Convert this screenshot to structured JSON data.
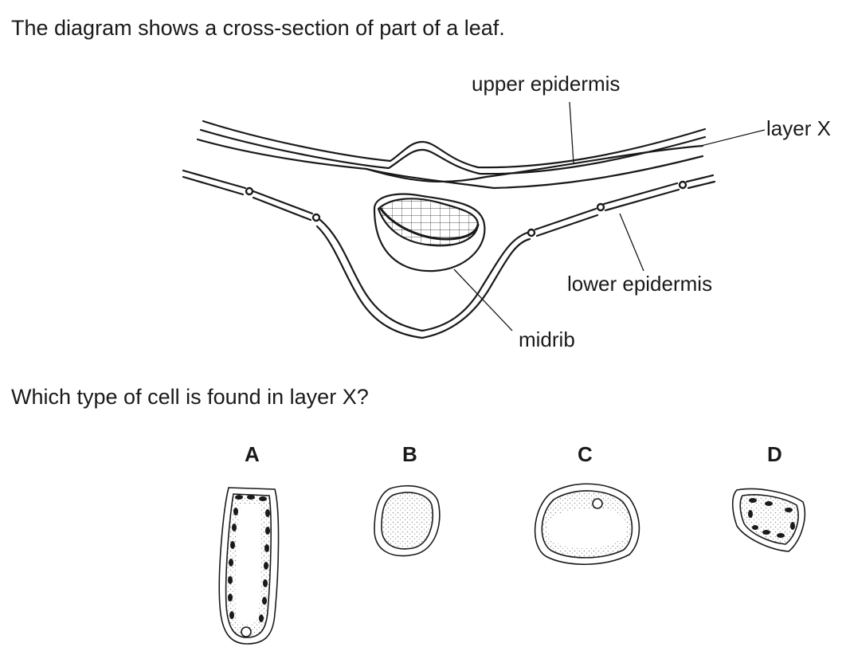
{
  "intro": "The diagram shows a cross-section of part of a leaf.",
  "question": "Which type of cell is found in layer X?",
  "labels": {
    "upper_epidermis": "upper epidermis",
    "layer_x": "layer X",
    "lower_epidermis": "lower epidermis",
    "midrib": "midrib"
  },
  "options": [
    {
      "letter": "A"
    },
    {
      "letter": "B"
    },
    {
      "letter": "C"
    },
    {
      "letter": "D"
    }
  ],
  "colors": {
    "ink": "#1a1a1a",
    "stipple": "#bdbdbd",
    "background": "#ffffff"
  }
}
